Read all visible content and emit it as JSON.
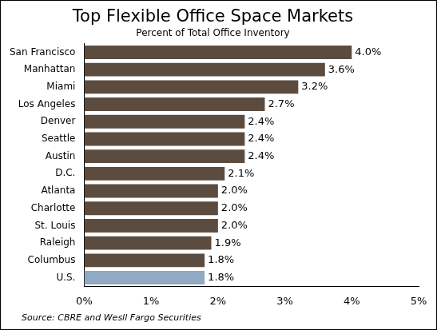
{
  "chart_data": {
    "type": "bar",
    "orientation": "horizontal",
    "title": "Top Flexible Office Space Markets",
    "subtitle": "Percent of Total Office Inventory",
    "annotations": [
      "Source: CBRE and Wesll Fargo Securities"
    ],
    "categories": [
      "San Francisco",
      "Manhattan",
      "Miami",
      "Los Angeles",
      "Denver",
      "Seattle",
      "Austin",
      "D.C.",
      "Atlanta",
      "Charlotte",
      "St. Louis",
      "Raleigh",
      "Columbus",
      "U.S."
    ],
    "values": [
      4.0,
      3.6,
      3.2,
      2.7,
      2.4,
      2.4,
      2.4,
      2.1,
      2.0,
      2.0,
      2.0,
      1.9,
      1.8,
      1.8
    ],
    "value_labels": [
      "4.0%",
      "3.6%",
      "3.2%",
      "2.7%",
      "2.4%",
      "2.4%",
      "2.4%",
      "2.1%",
      "2.0%",
      "2.0%",
      "2.0%",
      "1.9%",
      "1.8%",
      "1.8%"
    ],
    "colors": [
      "#5c4c40",
      "#5c4c40",
      "#5c4c40",
      "#5c4c40",
      "#5c4c40",
      "#5c4c40",
      "#5c4c40",
      "#5c4c40",
      "#5c4c40",
      "#5c4c40",
      "#5c4c40",
      "#5c4c40",
      "#5c4c40",
      "#8faac2"
    ],
    "xlim": [
      0,
      5
    ],
    "xticks": [
      {
        "value": 0,
        "label": "0%"
      },
      {
        "value": 1,
        "label": "1%"
      },
      {
        "value": 2,
        "label": "2%"
      },
      {
        "value": 3,
        "label": "3%"
      },
      {
        "value": 4,
        "label": "4%"
      },
      {
        "value": 5,
        "label": "5%"
      }
    ],
    "grid": false,
    "data_labels": true
  }
}
